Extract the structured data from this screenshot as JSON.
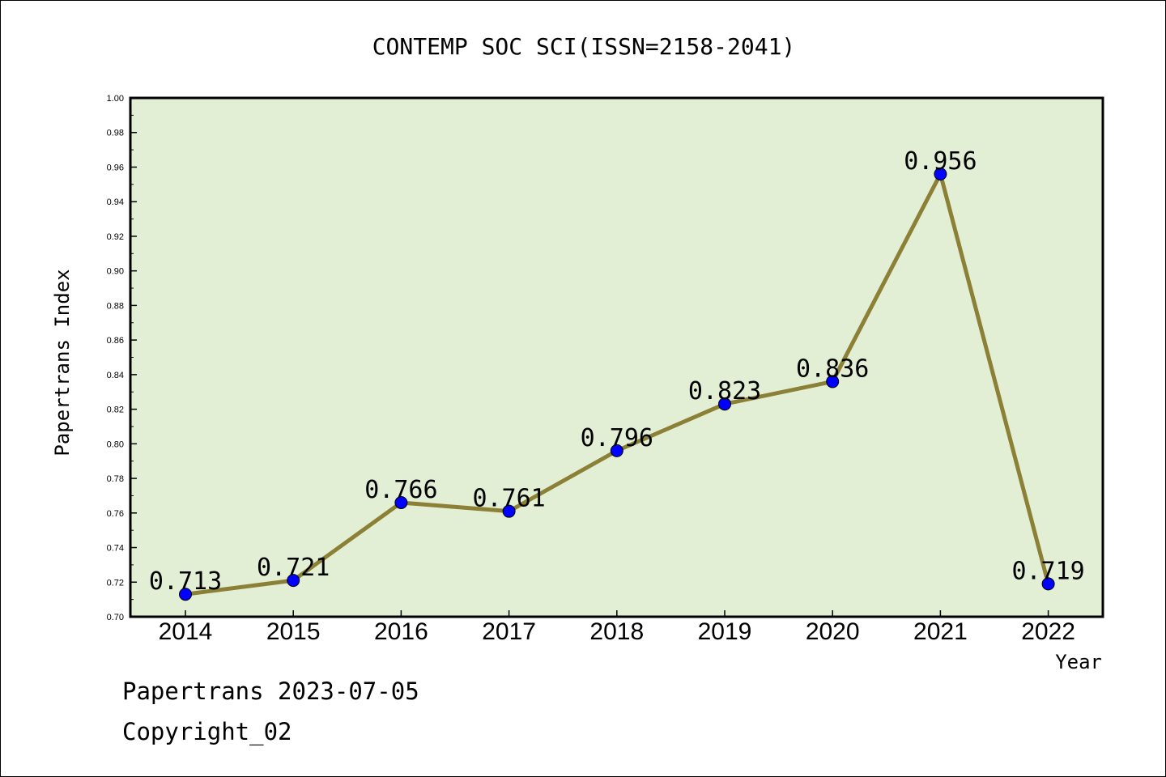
{
  "chart_data": {
    "type": "line",
    "title": "CONTEMP SOC SCI(ISSN=2158-2041)",
    "xlabel": "Year",
    "ylabel": "Papertrans Index",
    "categories": [
      "2014",
      "2015",
      "2016",
      "2017",
      "2018",
      "2019",
      "2020",
      "2021",
      "2022"
    ],
    "values": [
      0.713,
      0.721,
      0.766,
      0.761,
      0.796,
      0.823,
      0.836,
      0.956,
      0.719
    ],
    "data_labels": [
      "0.713",
      "0.721",
      "0.766",
      "0.761",
      "0.796",
      "0.823",
      "0.836",
      "0.956",
      "0.719"
    ],
    "ylim": [
      0.7,
      1.0
    ],
    "yticks": [
      "0.70",
      "0.72",
      "0.74",
      "0.76",
      "0.78",
      "0.80",
      "0.82",
      "0.84",
      "0.86",
      "0.88",
      "0.90",
      "0.92",
      "0.94",
      "0.96",
      "0.98",
      "1.00"
    ],
    "grid": false,
    "colors": {
      "plot_background": "#e2efd5",
      "line": "#8b8036",
      "marker": "#0000ff"
    }
  },
  "footer": {
    "source_line": "Papertrans 2023-07-05",
    "copyright": "Copyright_02"
  }
}
